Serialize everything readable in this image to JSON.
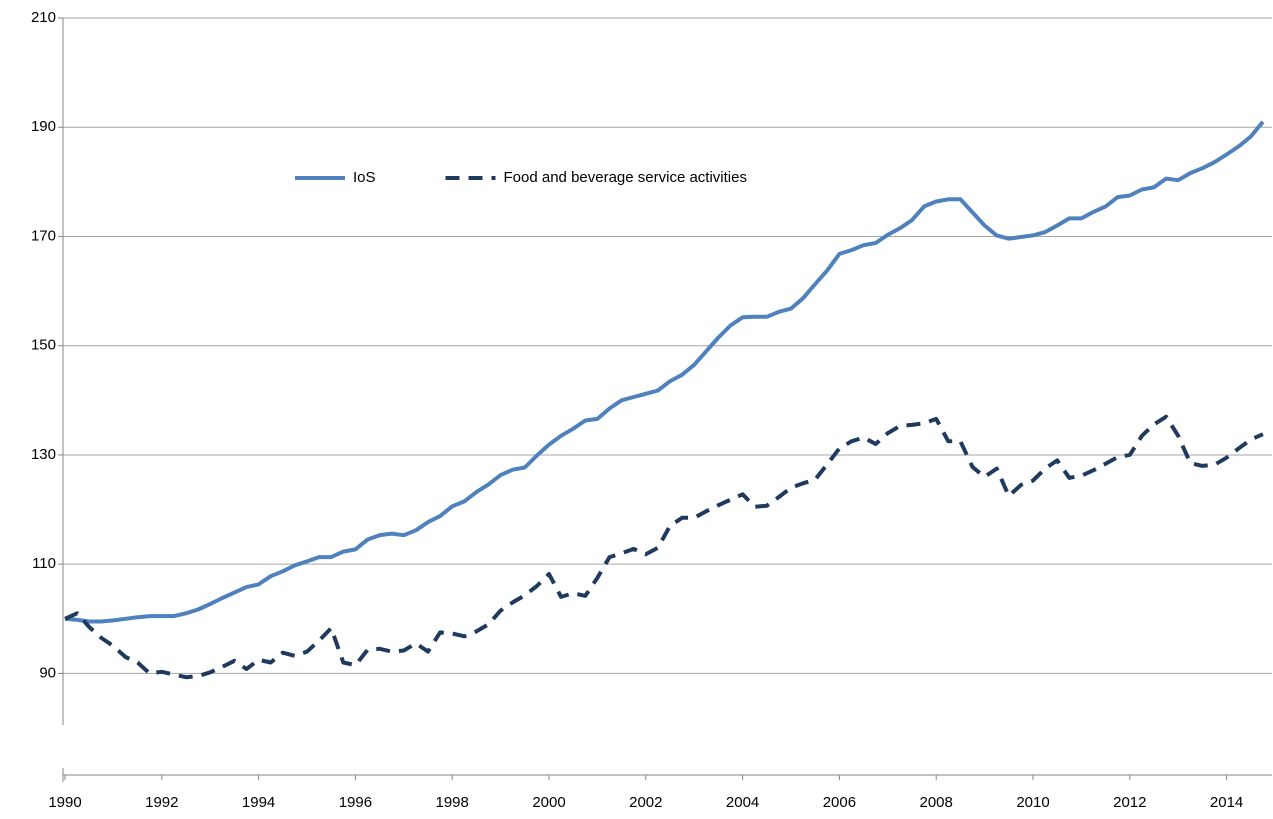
{
  "chart_data": {
    "type": "line",
    "x": [
      1990,
      1990.25,
      1990.5,
      1990.75,
      1991,
      1991.25,
      1991.5,
      1991.75,
      1992,
      1992.25,
      1992.5,
      1992.75,
      1993,
      1993.25,
      1993.5,
      1993.75,
      1994,
      1994.25,
      1994.5,
      1994.75,
      1995,
      1995.25,
      1995.5,
      1995.75,
      1996,
      1996.25,
      1996.5,
      1996.75,
      1997,
      1997.25,
      1997.5,
      1997.75,
      1998,
      1998.25,
      1998.5,
      1998.75,
      1999,
      1999.25,
      1999.5,
      1999.75,
      2000,
      2000.25,
      2000.5,
      2000.75,
      2001,
      2001.25,
      2001.5,
      2001.75,
      2002,
      2002.25,
      2002.5,
      2002.75,
      2003,
      2003.25,
      2003.5,
      2003.75,
      2004,
      2004.25,
      2004.5,
      2004.75,
      2005,
      2005.25,
      2005.5,
      2005.75,
      2006,
      2006.25,
      2006.5,
      2006.75,
      2007,
      2007.25,
      2007.5,
      2007.75,
      2008,
      2008.25,
      2008.5,
      2008.75,
      2009,
      2009.25,
      2009.5,
      2009.75,
      2010,
      2010.25,
      2010.5,
      2010.75,
      2011,
      2011.25,
      2011.5,
      2011.75,
      2012,
      2012.25,
      2012.5,
      2012.75,
      2013,
      2013.25,
      2013.5,
      2013.75,
      2014,
      2014.25,
      2014.5,
      2014.75
    ],
    "series": [
      {
        "name": "IoS",
        "color": "#4f81bd",
        "dash": false,
        "values": [
          100,
          99.8,
          99.5,
          99.5,
          99.7,
          100,
          100.3,
          100.5,
          100.5,
          100.5,
          101,
          101.7,
          102.7,
          103.8,
          104.8,
          105.8,
          106.3,
          107.8,
          108.7,
          109.8,
          110.5,
          111.3,
          111.3,
          112.3,
          112.7,
          114.5,
          115.3,
          115.6,
          115.3,
          116.2,
          117.7,
          118.8,
          120.6,
          121.5,
          123.2,
          124.6,
          126.3,
          127.3,
          127.7,
          129.9,
          131.9,
          133.5,
          134.8,
          136.3,
          136.6,
          138.5,
          140,
          140.6,
          141.2,
          141.8,
          143.5,
          144.7,
          146.5,
          149,
          151.5,
          153.7,
          155.2,
          155.3,
          155.3,
          156.2,
          156.8,
          158.7,
          161.3,
          163.8,
          166.8,
          167.5,
          168.4,
          168.8,
          170.3,
          171.5,
          173,
          175.5,
          176.4,
          176.8,
          176.8,
          174.4,
          172,
          170.2,
          169.6,
          169.9,
          170.2,
          170.8,
          172,
          173.3,
          173.3,
          174.5,
          175.5,
          177.2,
          177.5,
          178.6,
          179,
          180.6,
          180.3,
          181.6,
          182.5,
          183.6,
          185,
          186.5,
          188.3,
          191
        ]
      },
      {
        "name": "Food and beverage service activities",
        "color": "#1f3a5f",
        "dash": true,
        "values": [
          100,
          101,
          98.5,
          96.5,
          95,
          93,
          92,
          90,
          90.3,
          89.8,
          89.3,
          89.5,
          90.2,
          91.2,
          92.3,
          90.8,
          92.5,
          92,
          93.8,
          93.2,
          94,
          96,
          98.3,
          92,
          91.5,
          94.3,
          94.5,
          94,
          94.2,
          95.5,
          94,
          97.5,
          97.3,
          96.8,
          97.7,
          99,
          101.5,
          103,
          104.3,
          106,
          108.2,
          104,
          104.7,
          104.2,
          107.5,
          111.3,
          112,
          112.8,
          111.8,
          113,
          117,
          118.5,
          118.5,
          119.7,
          120.8,
          121.8,
          122.8,
          120.5,
          120.7,
          122.3,
          124,
          124.8,
          125.5,
          128.3,
          131.2,
          132.5,
          133.2,
          132,
          134,
          135.3,
          135.5,
          135.8,
          136.6,
          132.5,
          132.5,
          127.8,
          126,
          127.5,
          122.5,
          124.5,
          125.3,
          127.5,
          129,
          125.8,
          126.2,
          127.2,
          128.4,
          129.6,
          130,
          133.5,
          135.6,
          137,
          133.5,
          128.5,
          128,
          128.2,
          129.5,
          131.2,
          132.8,
          133.8
        ]
      }
    ],
    "xlim": [
      1990,
      2015
    ],
    "xticks": [
      1990,
      1992,
      1994,
      1996,
      1998,
      2000,
      2002,
      2004,
      2006,
      2008,
      2010,
      2012,
      2014
    ],
    "ylim": [
      71.4,
      210
    ],
    "yticks": [
      90,
      110,
      130,
      150,
      170,
      190,
      210
    ],
    "grid": true,
    "legend": "upper left"
  }
}
